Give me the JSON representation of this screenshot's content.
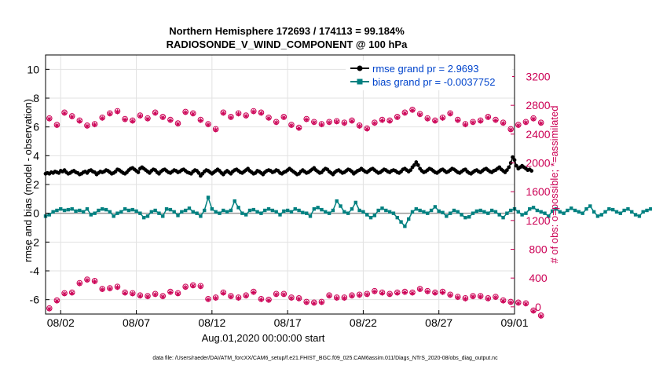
{
  "chart_data": {
    "type": "line",
    "title": "Northern Hemisphere 172693 / 174113 = 99.184%",
    "subtitle": "RADIOSONDE_V_WIND_COMPONENT @ 100 hPa",
    "xlabel": "Aug.01,2020 00:00:00 start",
    "ylabel": "rmse and bias (model - observation)",
    "y2label": "# of obs: o=possible; *=assimilated",
    "footer": "data file: /Users/raeder/DAI/ATM_forcXX/CAM6_setup/f.e21.FHIST_BGC.f09_025.CAM6assim.011/Diags_NTrS_2020-08/obs_diag_output.nc",
    "x_ticks": [
      "08/02",
      "08/07",
      "08/12",
      "08/17",
      "08/22",
      "08/27",
      "09/01"
    ],
    "xlim": [
      0,
      31
    ],
    "ylim": [
      -7,
      11
    ],
    "y_ticks": [
      "-6",
      "-4",
      "-2",
      "0",
      "2",
      "4",
      "6",
      "8",
      "10"
    ],
    "y2lim": [
      -100,
      3500
    ],
    "y2_ticks": [
      "0",
      "400",
      "800",
      "1200",
      "1600",
      "2000",
      "2400",
      "2800",
      "3200"
    ],
    "grid": true,
    "legend_position": "top-right",
    "colors": {
      "rmse": "#000000",
      "bias": "#008080",
      "obs": "#cc0055",
      "zero": "#999999",
      "grid": "#e2e2e2"
    },
    "series": [
      {
        "name": "rmse grand pr = 2.9693",
        "axis": "left",
        "x_step": 0.125,
        "values": [
          2.75,
          2.8,
          2.75,
          2.85,
          2.8,
          2.9,
          2.85,
          2.8,
          2.95,
          2.9,
          3.0,
          2.85,
          2.75,
          2.8,
          2.9,
          2.95,
          2.85,
          2.8,
          2.7,
          2.75,
          2.85,
          2.9,
          2.8,
          2.95,
          3.0,
          2.9,
          2.85,
          2.7,
          2.8,
          2.9,
          2.85,
          2.9,
          3.0,
          2.95,
          2.85,
          2.75,
          2.8,
          2.9,
          3.05,
          3.0,
          2.9,
          2.8,
          2.75,
          2.85,
          3.0,
          3.1,
          3.15,
          3.05,
          2.95,
          2.85,
          3.1,
          3.2,
          3.1,
          3.0,
          2.9,
          2.8,
          2.95,
          3.05,
          3.0,
          2.85,
          2.75,
          2.9,
          3.0,
          3.05,
          2.95,
          2.85,
          2.8,
          2.9,
          3.0,
          2.95,
          2.85,
          2.9,
          3.0,
          3.05,
          2.95,
          2.85,
          2.8,
          2.75,
          2.9,
          3.0,
          2.95,
          2.8,
          2.6,
          2.75,
          2.9,
          3.0,
          2.95,
          2.85,
          2.75,
          2.85,
          2.95,
          3.05,
          2.95,
          2.8,
          2.7,
          2.85,
          2.95,
          2.85,
          2.75,
          2.9,
          3.0,
          3.05,
          2.95,
          2.85,
          2.8,
          2.9,
          3.0,
          3.1,
          2.95,
          2.85,
          2.75,
          2.8,
          2.95,
          2.9,
          2.8,
          2.7,
          2.85,
          2.95,
          3.0,
          2.95,
          2.85,
          2.9,
          3.0,
          2.95,
          2.8,
          2.75,
          2.85,
          2.9,
          3.0,
          3.1,
          3.0,
          2.9,
          2.8,
          2.7,
          2.75,
          2.9,
          3.0,
          2.9,
          2.8,
          2.85,
          2.95,
          3.05,
          3.15,
          3.0,
          2.9,
          2.8,
          2.85,
          3.0,
          3.1,
          3.05,
          2.9,
          2.8,
          2.7,
          2.85,
          2.95,
          3.0,
          2.9,
          2.8,
          2.85,
          2.95,
          3.05,
          3.0,
          2.9,
          2.75,
          2.85,
          2.95,
          3.0,
          3.1,
          3.0,
          2.9,
          2.85,
          2.95,
          3.05,
          3.1,
          3.0,
          2.9,
          2.8,
          2.85,
          2.95,
          3.05,
          3.0,
          2.9,
          2.85,
          2.95,
          3.0,
          2.95,
          2.85,
          2.8,
          2.9,
          3.05,
          3.1,
          3.0,
          2.9,
          3.0,
          3.2,
          3.35,
          3.55,
          3.35,
          3.1,
          2.95,
          2.85,
          2.9,
          3.0,
          3.1,
          3.05,
          2.95,
          2.85,
          2.8,
          2.9,
          3.0,
          3.05,
          2.95,
          2.85,
          2.9,
          3.0,
          3.1,
          3.05,
          2.95,
          2.85,
          2.8,
          2.9,
          3.0,
          3.05,
          2.9,
          2.8,
          2.75,
          2.85,
          2.95,
          3.0,
          2.9,
          2.85,
          2.95,
          3.05,
          3.1,
          3.0,
          2.9,
          2.85,
          2.95,
          3.0,
          3.1,
          3.2,
          3.05,
          2.95,
          2.85,
          3.0,
          3.2,
          3.5,
          3.9,
          3.7,
          3.3,
          3.1,
          3.2,
          3.3,
          3.2,
          3.1,
          3.0,
          3.05,
          2.95
        ]
      },
      {
        "name": "bias grand pr = -0.0037752",
        "axis": "left",
        "x_step": 0.25,
        "values": [
          -0.2,
          -0.1,
          0.1,
          0.2,
          0.3,
          0.2,
          0.25,
          0.3,
          0.15,
          0.2,
          0.1,
          0.3,
          -0.1,
          0.0,
          0.2,
          0.3,
          0.25,
          0.1,
          -0.2,
          0.0,
          0.1,
          0.3,
          0.2,
          0.25,
          0.15,
          0.0,
          -0.3,
          -0.2,
          0.1,
          0.2,
          0.0,
          -0.2,
          0.3,
          0.25,
          0.1,
          -0.15,
          0.1,
          0.2,
          0.35,
          0.1,
          0.0,
          -0.2,
          0.2,
          1.1,
          0.3,
          0.1,
          0.0,
          0.2,
          0.1,
          0.2,
          0.85,
          0.4,
          0.0,
          -0.1,
          0.2,
          0.25,
          0.1,
          0.0,
          0.2,
          0.3,
          0.2,
          0.1,
          -0.1,
          0.15,
          0.2,
          0.1,
          0.3,
          0.2,
          0.05,
          0.0,
          -0.2,
          0.3,
          0.4,
          0.25,
          0.1,
          0.0,
          0.2,
          0.85,
          0.5,
          0.1,
          0.0,
          0.3,
          0.75,
          0.2,
          0.1,
          -0.1,
          -0.3,
          -0.15,
          0.2,
          0.35,
          0.2,
          0.1,
          0.0,
          -0.3,
          -0.6,
          -0.9,
          -0.4,
          0.1,
          0.3,
          0.2,
          0.1,
          0.0,
          0.2,
          0.45,
          0.15,
          0.05,
          -0.2,
          0.0,
          0.2,
          0.1,
          -0.1,
          -0.3,
          -0.25,
          0.0,
          0.15,
          0.2,
          0.1,
          0.0,
          0.2,
          0.1,
          -0.1,
          -0.3,
          0.0,
          0.2,
          0.3,
          0.1,
          -0.1,
          0.0,
          0.3,
          0.4,
          0.2,
          0.1,
          0.0,
          -0.2,
          0.15,
          0.3,
          0.1,
          0.0,
          0.2,
          0.35,
          0.2,
          0.1,
          0.0,
          0.3,
          0.5,
          0.1,
          -0.2,
          -0.1,
          0.1,
          0.3,
          0.25,
          0.1,
          0.0,
          0.2,
          0.3,
          0.1,
          -0.1,
          -0.2,
          0.1,
          0.2,
          0.3,
          0.1,
          0.0,
          0.2,
          0.3,
          0.25,
          0.1,
          0.0,
          0.1,
          0.2,
          0.3,
          0.25,
          0.1,
          0.2,
          0.25,
          0.3,
          0.2,
          0.1,
          0.0,
          -0.2,
          0.0,
          0.2,
          0.1,
          0.0,
          0.1,
          0.2,
          0.3,
          0.15,
          0.0,
          0.1,
          0.2,
          0.3,
          0.2,
          0.1,
          0.0,
          0.2,
          1.45,
          0.2,
          0.05,
          0.2,
          0.85,
          0.25,
          0.1,
          0.0,
          0.2,
          0.3,
          0.2,
          0.0,
          -0.1,
          0.1,
          0.2,
          0.15,
          0.1,
          0.0,
          -0.2,
          0.1,
          0.2,
          0.3,
          0.2,
          0.0,
          0.1,
          0.25,
          0.2,
          0.1,
          0.0,
          0.2,
          0.3,
          -0.1,
          -0.55,
          -0.2,
          0.1,
          0.3,
          0.15,
          0.0,
          0.2,
          0.3,
          0.1,
          0.0,
          -0.1,
          0.0,
          0.2,
          0.25,
          0.1,
          0.0,
          0.2,
          0.3,
          0.15,
          0.0,
          0.1,
          0.35,
          0.6,
          0.1,
          0.2,
          0.9,
          0.5,
          0.2,
          0.3,
          1.6,
          0.8,
          0.4,
          0.1,
          0.3,
          0.7,
          0.2,
          -0.2,
          0.1,
          0.4,
          0.3
        ]
      },
      {
        "name": "possible",
        "marker": "circle",
        "axis": "right",
        "x_step": 0.5,
        "values": [
          2620,
          2530,
          2700,
          2650,
          2590,
          2520,
          2540,
          2630,
          2690,
          2720,
          2610,
          2590,
          2660,
          2620,
          2700,
          2640,
          2600,
          2550,
          2710,
          2690,
          2600,
          2540,
          2470,
          2700,
          2640,
          2690,
          2660,
          2720,
          2700,
          2630,
          2570,
          2640,
          2530,
          2490,
          2610,
          2570,
          2540,
          2570,
          2580,
          2560,
          2590,
          2520,
          2480,
          2560,
          2600,
          2590,
          2640,
          2700,
          2740,
          2680,
          2620,
          2590,
          2630,
          2690,
          2600,
          2540,
          2570,
          2590,
          2640,
          2600,
          2560,
          2470,
          2530,
          2570,
          2620,
          2560
        ],
        "low_values": [
          -20,
          90,
          190,
          200,
          330,
          380,
          360,
          250,
          260,
          280,
          200,
          190,
          160,
          150,
          180,
          150,
          210,
          190,
          280,
          300,
          290,
          110,
          130,
          200,
          150,
          130,
          160,
          210,
          110,
          100,
          180,
          180,
          130,
          120,
          70,
          60,
          70,
          160,
          130,
          130,
          160,
          170,
          180,
          220,
          200,
          180,
          200,
          210,
          200,
          250,
          220,
          200,
          210,
          170,
          140,
          120,
          150,
          150,
          120,
          140,
          90,
          70,
          60,
          50,
          -50,
          -120
        ]
      },
      {
        "name": "assimilated",
        "marker": "star",
        "axis": "right",
        "x_step": 0.5,
        "values": [
          2610,
          2520,
          2690,
          2640,
          2580,
          2510,
          2530,
          2620,
          2680,
          2710,
          2600,
          2580,
          2650,
          2610,
          2690,
          2630,
          2590,
          2540,
          2700,
          2680,
          2590,
          2530,
          2460,
          2690,
          2630,
          2680,
          2650,
          2710,
          2690,
          2620,
          2560,
          2630,
          2520,
          2480,
          2600,
          2560,
          2530,
          2560,
          2570,
          2550,
          2580,
          2510,
          2470,
          2550,
          2590,
          2580,
          2630,
          2690,
          2730,
          2670,
          2610,
          2580,
          2620,
          2680,
          2590,
          2530,
          2560,
          2580,
          2630,
          2590,
          2550,
          2460,
          2520,
          2560,
          2610,
          2550
        ],
        "low_values": [
          -30,
          80,
          180,
          190,
          320,
          370,
          350,
          240,
          250,
          270,
          190,
          180,
          150,
          140,
          170,
          140,
          200,
          180,
          270,
          290,
          280,
          100,
          120,
          190,
          140,
          120,
          150,
          200,
          100,
          90,
          170,
          170,
          120,
          110,
          60,
          50,
          60,
          150,
          120,
          120,
          150,
          160,
          170,
          210,
          190,
          170,
          190,
          200,
          190,
          240,
          210,
          190,
          200,
          160,
          130,
          110,
          140,
          140,
          110,
          130,
          80,
          60,
          50,
          40,
          -60,
          -130
        ]
      }
    ]
  }
}
